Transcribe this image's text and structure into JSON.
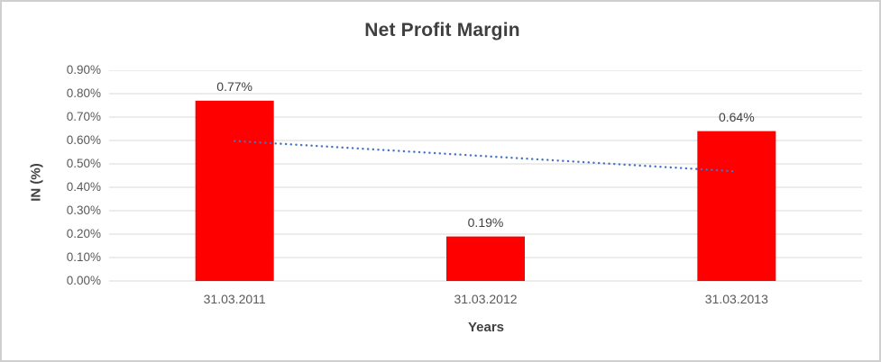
{
  "chart_data": {
    "type": "bar",
    "title": "Net Profit Margin",
    "categories": [
      "31.03.2011",
      "31.03.2012",
      "31.03.2013"
    ],
    "values": [
      0.77,
      0.19,
      0.64
    ],
    "value_labels": [
      "0.77%",
      "0.19%",
      "0.64%"
    ],
    "xlabel": "Years",
    "ylabel": "IN (%)",
    "ylim": [
      0,
      0.9
    ],
    "ytick_step": 0.1,
    "ytick_labels": [
      "0.00%",
      "0.10%",
      "0.20%",
      "0.30%",
      "0.40%",
      "0.50%",
      "0.60%",
      "0.70%",
      "0.80%",
      "0.90%"
    ],
    "grid": true,
    "legend_position": "none",
    "bar_color": "#FF0000",
    "gridline_color": "#D9D9D9",
    "trendline": {
      "type": "linear",
      "style": "dotted",
      "color": "#4472C4",
      "start_value": 0.598,
      "end_value": 0.468
    }
  }
}
